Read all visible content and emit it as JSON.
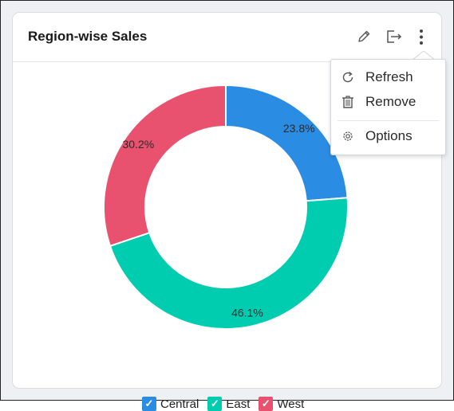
{
  "widget": {
    "title": "Region-wise Sales",
    "icons": [
      "edit-pencil-icon",
      "export-icon",
      "more-vertical-icon"
    ]
  },
  "menu": {
    "items": [
      {
        "label": "Refresh",
        "icon": "refresh-icon"
      },
      {
        "label": "Remove",
        "icon": "trash-icon"
      },
      {
        "label": "Options",
        "icon": "gear-icon"
      }
    ]
  },
  "chart_data": {
    "type": "pie",
    "donut": true,
    "categories": [
      "Central",
      "East",
      "West"
    ],
    "values": [
      23.8,
      46.1,
      30.2
    ],
    "value_labels": [
      "23.8%",
      "46.1%",
      "30.2%"
    ],
    "colors": [
      "#2a8ce2",
      "#00ccb0",
      "#e8526f"
    ],
    "legend": {
      "placement": "bottom",
      "entries": [
        "Central",
        "East",
        "West"
      ],
      "checked": [
        true,
        true,
        true
      ]
    }
  }
}
